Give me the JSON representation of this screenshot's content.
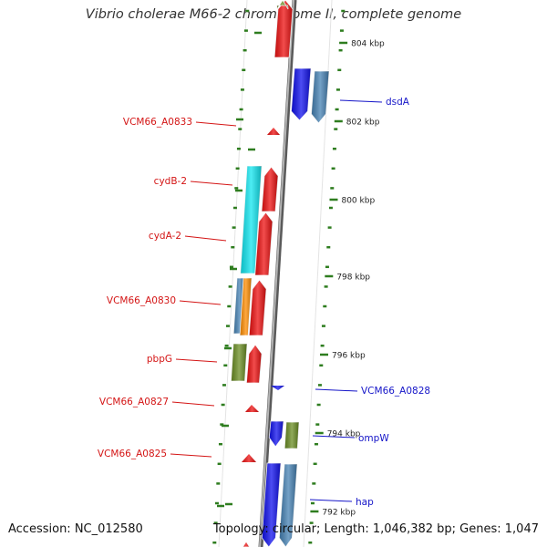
{
  "title": "Vibrio cholerae M66-2 chromosome II, complete genome",
  "footer": {
    "accession": "Accession: NC_012580",
    "summary": "Topology: circular; Length: 1,046,382 bp; Genes: 1,047"
  },
  "colors": {
    "backbone": "#8c8c8c",
    "tick": "#2e7d1f",
    "label_left": "#d41515",
    "label_right": "#1515c8",
    "red": "#ee1111",
    "blue": "#1111ee",
    "steel": "#4682b4",
    "cyan": "#11e6f0",
    "olive": "#6b8e23",
    "orange": "#ff8c00"
  },
  "scale": {
    "ticks": [
      {
        "label": "804 kbp"
      },
      {
        "label": "802 kbp"
      },
      {
        "label": "800 kbp"
      },
      {
        "label": "798 kbp"
      },
      {
        "label": "796 kbp"
      },
      {
        "label": "794 kbp"
      },
      {
        "label": "792 kbp"
      }
    ]
  },
  "labels_left": [
    {
      "text": "VCM66_A0833"
    },
    {
      "text": "cydB-2"
    },
    {
      "text": "cydA-2"
    },
    {
      "text": "VCM66_A0830"
    },
    {
      "text": "pbpG"
    },
    {
      "text": "VCM66_A0827"
    },
    {
      "text": "VCM66_A0825"
    }
  ],
  "labels_right": [
    {
      "text": "dsdA"
    },
    {
      "text": "VCM66_A0828"
    },
    {
      "text": "ompW"
    },
    {
      "text": "hap"
    }
  ]
}
